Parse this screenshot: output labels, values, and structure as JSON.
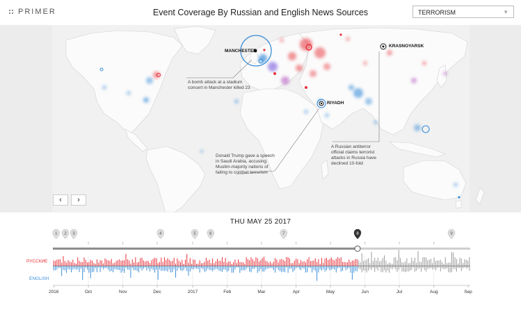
{
  "header": {
    "logo_text": "PRIMER",
    "title": "Event Coverage By Russian and English News Sources",
    "topic_value": "TERRORISM",
    "topic_arrow": "▼"
  },
  "map": {
    "cities": [
      "MANCHESTER",
      "KRASNOYARSK",
      "RIYADH"
    ],
    "annotations": [
      "A bomb attack at a stadium concert in Manchester killed 23",
      "Donald Trump gave a speech in Saudi Arabia, accusing Muslim-majority nations of failing to combat terrorism",
      "A Russian antiterror official claims terrorist attacks in Russia have declined 10-fold"
    ],
    "prev_label": "‹",
    "next_label": "›"
  },
  "timeline": {
    "date": "THU MAY 25 2017",
    "russian_label": "РУССКИЕ",
    "english_label": "ENGLISH",
    "markers": [
      "1",
      "2",
      "3",
      "4",
      "5",
      "6",
      "7",
      "8",
      "9"
    ],
    "active_marker": "8",
    "months": [
      "2016",
      "Oct",
      "Nov",
      "Dec",
      "2017",
      "Feb",
      "Mar",
      "Apr",
      "May",
      "Jun",
      "Jul",
      "Aug",
      "Sep"
    ],
    "progress": 0.73
  },
  "colors": {
    "russian": "#e8303a",
    "english": "#3b8fd9",
    "future": "#9a9a9a",
    "map_land": "#fafafa",
    "map_bg": "#ececec"
  }
}
